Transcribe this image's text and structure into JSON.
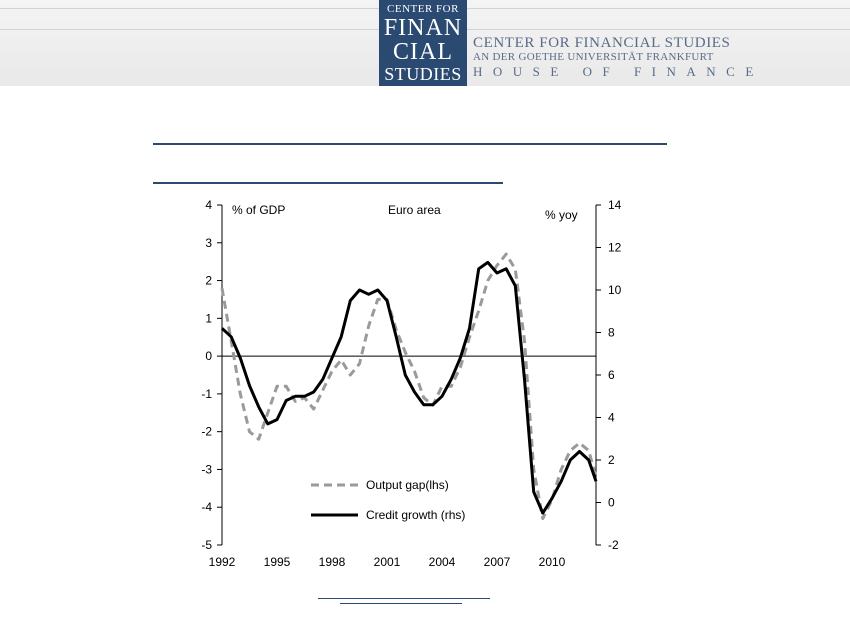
{
  "header": {
    "logo": {
      "line1": "CENTER FOR",
      "line2": "FINAN",
      "line3": "CIAL",
      "line4": "STUDIES"
    },
    "org_name": "CENTER FOR FINANCIAL STUDIES",
    "org_sub": "AN DER GOETHE UNIVERSITÄT FRANKFURT",
    "org_house": "HOUSE OF FINANCE",
    "brand_color": "#2b4a72"
  },
  "chart_data": {
    "type": "line",
    "title": "Euro area",
    "left_axis_label": "% of GDP",
    "right_axis_label": "% yoy",
    "left_ylim": [
      -5,
      4
    ],
    "right_ylim": [
      -2,
      14
    ],
    "left_ticks": [
      "4",
      "3",
      "2",
      "1",
      "0",
      "-1",
      "-2",
      "-3",
      "-4",
      "-5"
    ],
    "right_ticks": [
      "14",
      "12",
      "10",
      "8",
      "6",
      "4",
      "2",
      "0",
      "-2"
    ],
    "x_ticks": [
      "1992",
      "1995",
      "1998",
      "2001",
      "2004",
      "2007",
      "2010"
    ],
    "xlim": [
      1992,
      2012.4
    ],
    "legend": {
      "position": "bottom-center"
    },
    "series": [
      {
        "name": "Output gap(lhs)",
        "axis": "left",
        "style": "dashed",
        "color": "#9a9a9a",
        "x": [
          1992,
          1992.5,
          1993,
          1993.5,
          1994,
          1994.5,
          1995,
          1995.5,
          1996,
          1996.5,
          1997,
          1997.5,
          1998,
          1998.5,
          1999,
          1999.5,
          2000,
          2000.5,
          2001,
          2001.5,
          2002,
          2002.5,
          2003,
          2003.5,
          2004,
          2004.5,
          2005,
          2005.5,
          2006,
          2006.5,
          2007,
          2007.5,
          2008,
          2008.5,
          2009,
          2009.5,
          2010,
          2010.5,
          2011,
          2011.5,
          2012,
          2012.4
        ],
        "values": [
          1.8,
          0.4,
          -1.0,
          -2.0,
          -2.2,
          -1.5,
          -0.8,
          -0.8,
          -1.2,
          -1.1,
          -1.4,
          -0.9,
          -0.4,
          -0.1,
          -0.5,
          -0.2,
          0.8,
          1.5,
          1.5,
          0.7,
          0.1,
          -0.4,
          -1.1,
          -1.3,
          -0.8,
          -0.8,
          -0.3,
          0.5,
          1.2,
          2.0,
          2.4,
          2.7,
          2.3,
          0.4,
          -3.0,
          -4.3,
          -3.8,
          -3.0,
          -2.5,
          -2.3,
          -2.5,
          -3.2
        ]
      },
      {
        "name": "Credit growth  (rhs)",
        "axis": "right",
        "style": "solid",
        "color": "#000000",
        "x": [
          1992,
          1992.5,
          1993,
          1993.5,
          1994,
          1994.5,
          1995,
          1995.5,
          1996,
          1996.5,
          1997,
          1997.5,
          1998,
          1998.5,
          1999,
          1999.5,
          2000,
          2000.5,
          2001,
          2001.5,
          2002,
          2002.5,
          2003,
          2003.5,
          2004,
          2004.5,
          2005,
          2005.5,
          2006,
          2006.5,
          2007,
          2007.5,
          2008,
          2008.5,
          2009,
          2009.5,
          2010,
          2010.5,
          2011,
          2011.5,
          2012,
          2012.4
        ],
        "values": [
          8.2,
          7.8,
          6.8,
          5.5,
          4.5,
          3.7,
          3.9,
          4.8,
          5.0,
          5.0,
          5.2,
          5.8,
          6.8,
          7.8,
          9.5,
          10.0,
          9.8,
          10.0,
          9.5,
          7.8,
          6.0,
          5.2,
          4.6,
          4.6,
          5.0,
          5.8,
          6.8,
          8.2,
          11.0,
          11.3,
          10.8,
          11.0,
          10.2,
          5.8,
          0.5,
          -0.5,
          0.2,
          1.0,
          2.0,
          2.4,
          2.0,
          1.0
        ]
      }
    ]
  }
}
